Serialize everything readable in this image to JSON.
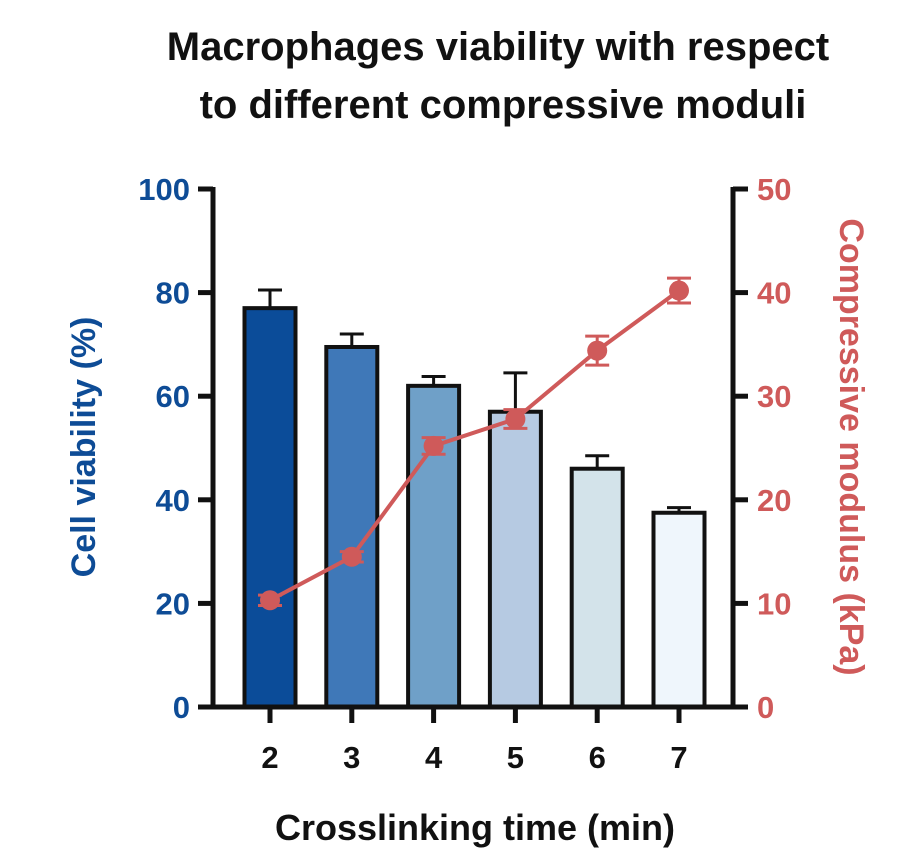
{
  "chart_data": {
    "type": "bar",
    "title_lines": [
      "Macrophages viability with respect",
      "to different compressive moduli"
    ],
    "xlabel": "Crosslinking time (min)",
    "ylabel": "Cell viability (%)",
    "y2label": "Compressive modulus (kPa)",
    "categories": [
      "2",
      "3",
      "4",
      "5",
      "6",
      "7"
    ],
    "ylim": [
      0,
      100
    ],
    "y2lim": [
      0,
      50
    ],
    "yticks": [
      "0",
      "20",
      "40",
      "60",
      "80",
      "100"
    ],
    "y2ticks": [
      "0",
      "10",
      "20",
      "30",
      "40",
      "50"
    ],
    "grid": false,
    "legend": "none",
    "series": [
      {
        "type": "bar",
        "axis": "left",
        "values": [
          77,
          69.5,
          62,
          57,
          46,
          37.5
        ],
        "errors": [
          3.5,
          2.5,
          1.8,
          7.5,
          2.5,
          1
        ],
        "colors": [
          "#0b4c99",
          "#3f78b8",
          "#6fa0c8",
          "#b6cae2",
          "#d3e3ea",
          "#eff6fc"
        ]
      },
      {
        "type": "line",
        "axis": "right",
        "values": [
          10.3,
          14.5,
          25.2,
          27.8,
          34.4,
          40.2
        ],
        "errors": [
          0.5,
          0.5,
          0.8,
          0.9,
          1.4,
          1.2
        ],
        "color": "#cf5a5a"
      }
    ],
    "colors": {
      "left_axis": "#0e4c96",
      "right_axis": "#cf5a5a",
      "axis_line": "#111111"
    }
  }
}
